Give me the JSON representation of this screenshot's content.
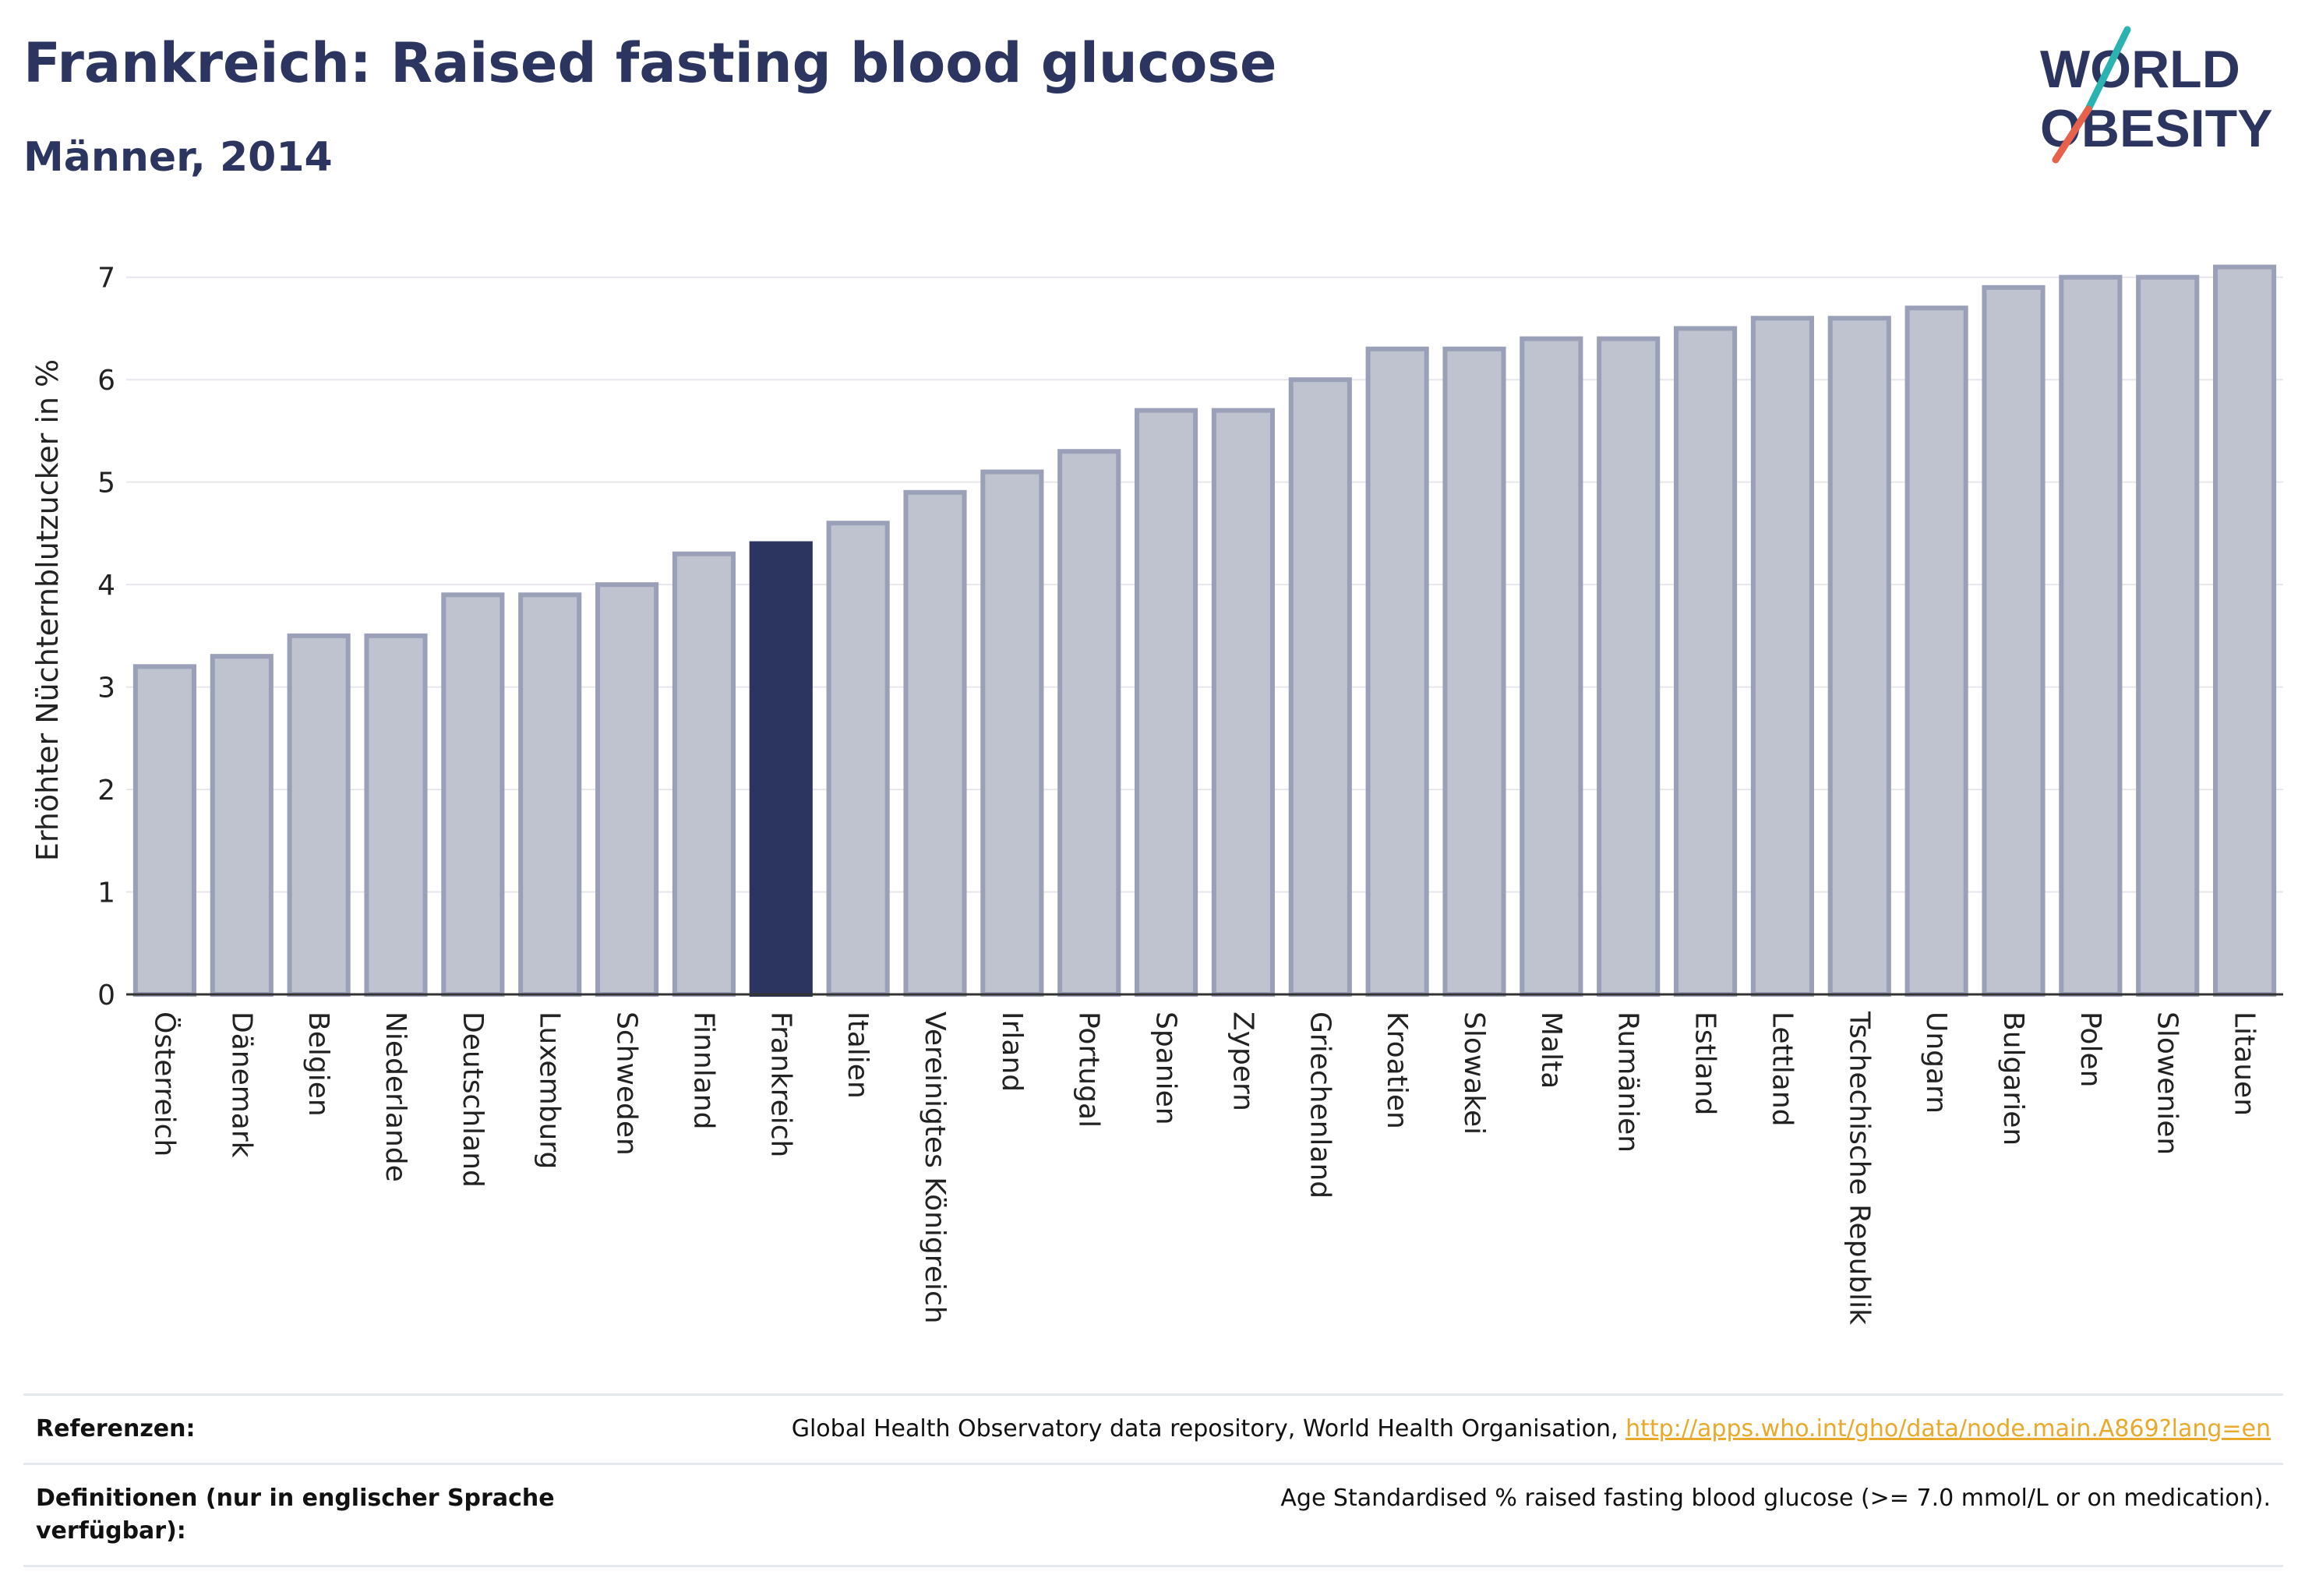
{
  "header": {
    "title": "Frankreich: Raised fasting blood glucose",
    "subtitle": "Männer, 2014"
  },
  "logo": {
    "line1": "WORLD",
    "line2": "OBESITY",
    "accent_colors": [
      "#2bb3b1",
      "#e8614a"
    ]
  },
  "colors": {
    "bar": "#bfc2cf",
    "bar_stroke": "#9aa0b8",
    "highlight": "#2b3560",
    "grid": "#e6e6ec"
  },
  "chart_data": {
    "type": "bar",
    "title": "",
    "ylabel": "Erhöhter Nüchternblutzucker in %",
    "xlabel": "",
    "ylim": [
      0,
      7.5
    ],
    "yticks": [
      0,
      1,
      2,
      3,
      4,
      5,
      6,
      7
    ],
    "grid": true,
    "highlight": "Frankreich",
    "categories": [
      "Österreich",
      "Dänemark",
      "Belgien",
      "Niederlande",
      "Deutschland",
      "Luxemburg",
      "Schweden",
      "Finnland",
      "Frankreich",
      "Italien",
      "Vereinigtes Königreich",
      "Irland",
      "Portugal",
      "Spanien",
      "Zypern",
      "Griechenland",
      "Kroatien",
      "Slowakei",
      "Malta",
      "Rumänien",
      "Estland",
      "Lettland",
      "Tschechische Republik",
      "Ungarn",
      "Bulgarien",
      "Polen",
      "Slowenien",
      "Litauen"
    ],
    "values": [
      3.2,
      3.3,
      3.5,
      3.5,
      3.9,
      3.9,
      4.0,
      4.3,
      4.4,
      4.6,
      4.9,
      5.1,
      5.3,
      5.7,
      5.7,
      6.0,
      6.3,
      6.3,
      6.4,
      6.4,
      6.5,
      6.6,
      6.6,
      6.7,
      6.9,
      7.0,
      7.0,
      7.1
    ]
  },
  "footer": {
    "references_label": "Referenzen:",
    "references_text": "Global Health Observatory data repository, World Health Organisation, ",
    "references_link": "http://apps.who.int/gho/data/node.main.A869?lang=en",
    "definitions_label": "Definitionen (nur in englischer Sprache verfügbar):",
    "definitions_text": "Age Standardised % raised fasting blood glucose (>= 7.0 mmol/L or on medication)."
  }
}
